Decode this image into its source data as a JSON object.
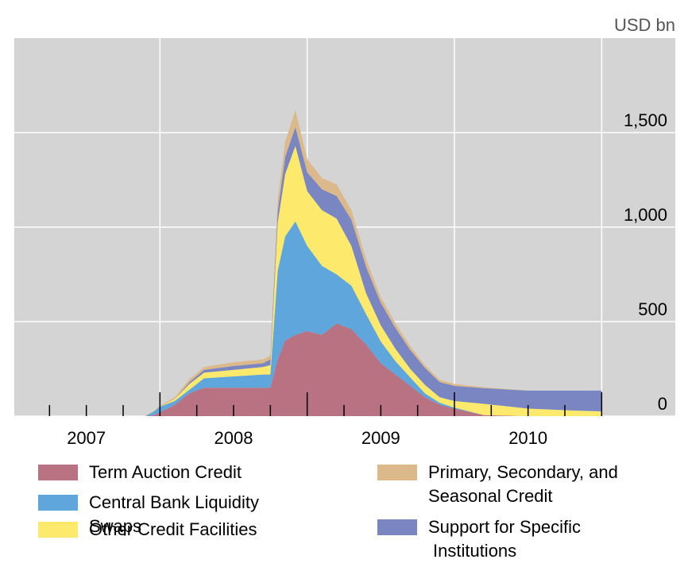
{
  "chart_data": {
    "type": "stacked_area",
    "y_unit": "USD bn",
    "x": [
      2007.9,
      2007.96,
      2008.0,
      2008.1,
      2008.2,
      2008.3,
      2008.5,
      2008.7,
      2008.75,
      2008.8,
      2008.85,
      2008.92,
      2009.0,
      2009.1,
      2009.2,
      2009.3,
      2009.4,
      2009.5,
      2009.6,
      2009.7,
      2009.8,
      2009.9,
      2010.0,
      2010.2,
      2010.5,
      2010.8,
      2011.0
    ],
    "series": [
      {
        "name": "Term Auction Credit",
        "color": "#b87282",
        "values": [
          0,
          5,
          20,
          60,
          120,
          150,
          150,
          150,
          150,
          300,
          400,
          430,
          450,
          430,
          490,
          460,
          380,
          280,
          220,
          160,
          100,
          60,
          40,
          5,
          0,
          0,
          0
        ]
      },
      {
        "name": "Central Bank Liquidity Swaps",
        "color": "#5ea6dc",
        "values": [
          0,
          20,
          30,
          20,
          20,
          50,
          60,
          70,
          70,
          470,
          550,
          600,
          450,
          365,
          260,
          230,
          160,
          115,
          70,
          45,
          20,
          10,
          5,
          0,
          0,
          0,
          0
        ]
      },
      {
        "name": "Other Credit Facilities",
        "color": "#fde96b",
        "values": [
          0,
          0,
          0,
          10,
          30,
          30,
          35,
          40,
          50,
          255,
          330,
          400,
          290,
          295,
          295,
          210,
          110,
          85,
          65,
          45,
          45,
          30,
          35,
          60,
          40,
          30,
          25
        ]
      },
      {
        "name": "Support for Specific Institutions",
        "color": "#7a86c2",
        "values": [
          0,
          0,
          0,
          0,
          10,
          15,
          20,
          20,
          30,
          60,
          90,
          100,
          100,
          110,
          120,
          140,
          140,
          120,
          110,
          100,
          90,
          80,
          80,
          83,
          95,
          105,
          110
        ]
      },
      {
        "name": "Primary, Secondary, and Seasonal Credit",
        "color": "#dcb98a",
        "values": [
          0,
          3,
          5,
          10,
          15,
          15,
          20,
          20,
          20,
          60,
          80,
          90,
          70,
          60,
          60,
          50,
          40,
          30,
          25,
          20,
          15,
          12,
          10,
          5,
          0,
          0,
          0
        ]
      }
    ],
    "xlim": [
      2007,
      2011.5
    ],
    "ylim": [
      0,
      2000
    ],
    "yticks": [
      0,
      500,
      {
        "value": 1000,
        "label": "1,000"
      },
      {
        "value": 1500,
        "label": "1,500"
      }
    ],
    "xticks": [
      {
        "value": 2007.5,
        "label": "2007"
      },
      {
        "value": 2008.5,
        "label": "2008"
      },
      {
        "value": 2009.5,
        "label": "2009"
      },
      {
        "value": 2010.5,
        "label": "2010"
      }
    ],
    "xminorticks": [
      2007.25,
      2007.5,
      2007.75,
      2008.0,
      2008.25,
      2008.5,
      2008.75,
      2009.0,
      2009.25,
      2009.5,
      2009.75,
      2010.0,
      2010.25,
      2010.5,
      2010.75,
      2011.0
    ],
    "xgrid": [
      2008,
      2009,
      2010,
      2011
    ],
    "grid": true,
    "background": "#d4d4d4"
  }
}
